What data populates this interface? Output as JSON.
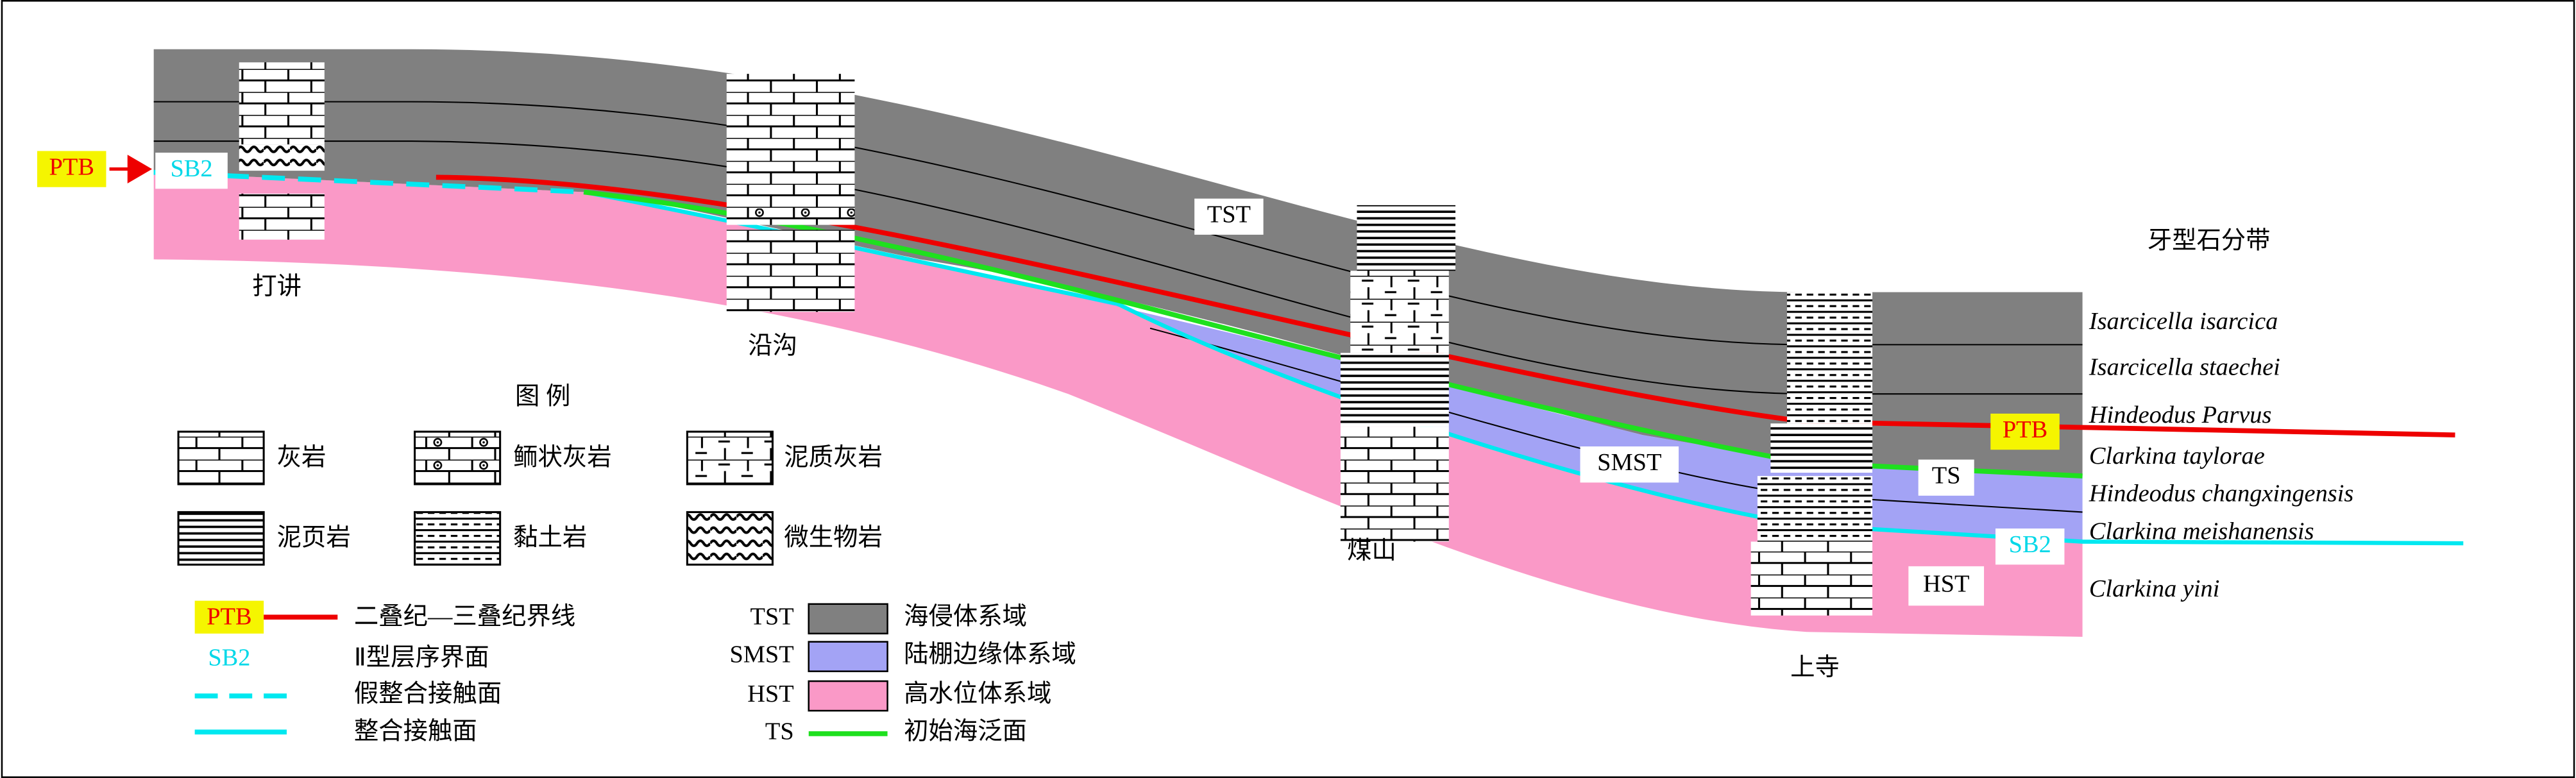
{
  "section": {
    "boundary_labels": [
      "PTB",
      "SB2",
      "PTB",
      "SB2"
    ],
    "tract_labels": [
      "TST",
      "SMST",
      "TS",
      "HST"
    ],
    "wells": [
      "打讲",
      "沿沟",
      "煤山",
      "上寺"
    ]
  },
  "zonation": {
    "title": "牙型石分带",
    "zones": [
      "Isarcicella isarcica",
      "Isarcicella staechei",
      "Hindeodus Parvus",
      "Clarkina taylorae",
      "Hindeodus changxingensis",
      "Clarkina meishanensis",
      "Clarkina yini"
    ]
  },
  "legend": {
    "title": "图 例",
    "lithology": [
      "灰岩",
      "鲕状灰岩",
      "泥质灰岩",
      "泥页岩",
      "黏土岩",
      "微生物岩"
    ],
    "lines": [
      {
        "key": "PTB",
        "label": "二叠纪—三叠纪界线"
      },
      {
        "key": "SB2",
        "label": "Ⅱ型层序界面"
      },
      {
        "label": "假整合接触面"
      },
      {
        "label": "整合接触面"
      }
    ],
    "tracts": [
      {
        "key": "TST",
        "label": "海侵体系域"
      },
      {
        "key": "SMST",
        "label": "陆棚边缘体系域"
      },
      {
        "key": "HST",
        "label": "高水位体系域"
      },
      {
        "key": "TS",
        "label": "初始海泛面"
      }
    ]
  }
}
